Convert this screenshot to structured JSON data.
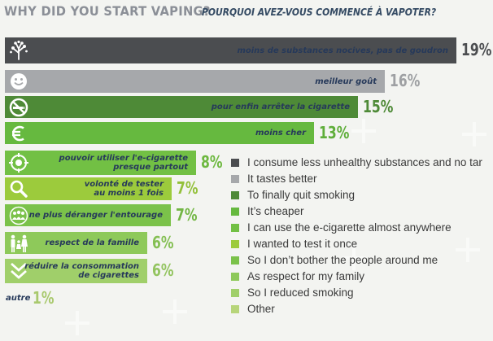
{
  "header": {
    "title_en": "WHY DID YOU START VAPING?",
    "title_fr": "POURQUOI AVEZ-VOUS COMMENCÉ À VAPOTER?"
  },
  "chart_data": {
    "type": "bar",
    "orientation": "horizontal",
    "unit": "%",
    "categories": [
      "moins de substances nocives, pas de goudron",
      "meilleur goût",
      "pour enfin arrêter la cigarette",
      "moins cher",
      "pouvoir utiliser l'e-cigarette\npresque partout",
      "volonté de tester\nau moins 1 fois",
      "ne plus déranger l'entourage",
      "respect de la famille",
      "réduire la consommation\nde cigarettes",
      "autre"
    ],
    "values": [
      19,
      16,
      15,
      13,
      8,
      7,
      7,
      6,
      6,
      1
    ],
    "value_labels": [
      "19%",
      "16%",
      "15%",
      "13%",
      "8%",
      "7%",
      "7%",
      "6%",
      "6%",
      "1%"
    ],
    "colors": [
      "#4b4d50",
      "#a6a8ab",
      "#4e8a37",
      "#66b93f",
      "#72c044",
      "#9ccb3c",
      "#7bc24a",
      "#8ec95a",
      "#a0cf6a",
      "#b7d57a"
    ],
    "value_colors": [
      "#4b4d50",
      "#9ea0a3",
      "#4e8a37",
      "#5fae3a",
      "#6db83f",
      "#93c03a",
      "#72b644",
      "#84bf53",
      "#93c460",
      "#a9c96e"
    ],
    "icons": [
      "tree-icon",
      "smile-icon",
      "no-smoking-icon",
      "euro-icon",
      "target-icon",
      "magnifier-icon",
      "group-icon",
      "family-icon",
      "chevrons-down-icon",
      ""
    ],
    "legend": [
      "I consume less unhealthy substances and no tar",
      "It tastes better",
      "To finally quit smoking",
      "It’s cheaper",
      "I can use the e-cigarette almost anywhere",
      "I wanted to test it once",
      "So I don’t bother the people around me",
      "As respect for my family",
      "So I reduced smoking",
      "Other"
    ],
    "legend_position": "right",
    "grid": false
  }
}
